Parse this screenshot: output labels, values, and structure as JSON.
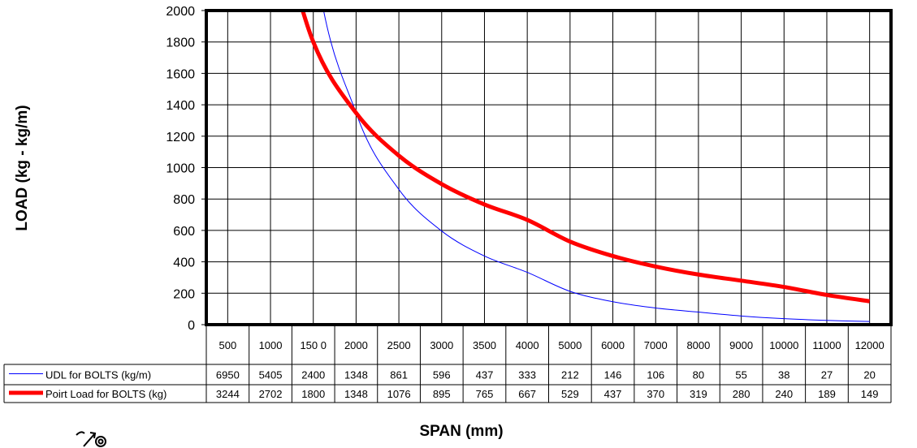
{
  "chart_data": {
    "type": "line",
    "ylabel": "LOAD (kg - kg/m)",
    "xlabel": "SPAN (mm)",
    "ylim": [
      0,
      2000
    ],
    "yticks": [
      0,
      200,
      400,
      600,
      800,
      1000,
      1200,
      1400,
      1600,
      1800,
      2000
    ],
    "categories": [
      "500",
      "1000",
      "150 0",
      "2000",
      "2500",
      "3000",
      "3500",
      "4000",
      "5000",
      "6000",
      "7000",
      "8000",
      "9000",
      "10000",
      "11000",
      "12000"
    ],
    "grid": true,
    "legend": "data-table",
    "series": [
      {
        "name": "UDL for BOLTS (kg/m)",
        "values": [
          6950,
          5405,
          2400,
          1348,
          861,
          596,
          437,
          333,
          212,
          146,
          106,
          80,
          55,
          38,
          27,
          20
        ],
        "value_labels": [
          "6950",
          "5405",
          "2400",
          "1348",
          "861",
          "596",
          "437",
          "333",
          "212",
          "146",
          "106",
          "80",
          "55",
          "38",
          "27",
          "20"
        ],
        "color": "#0000ff"
      },
      {
        "name": "Poirt Load for BOLTS (kg)",
        "values": [
          3244,
          2702,
          1800,
          1348,
          1076,
          895,
          765,
          667,
          529,
          437,
          370,
          319,
          280,
          240,
          189,
          149
        ],
        "value_labels": [
          "3244",
          "2702",
          "1800",
          "1348",
          "1076",
          "895",
          "765",
          "667",
          "529",
          "437",
          "370",
          "319",
          "280",
          "240",
          "189",
          "149"
        ],
        "color": "#ff0000"
      }
    ]
  }
}
